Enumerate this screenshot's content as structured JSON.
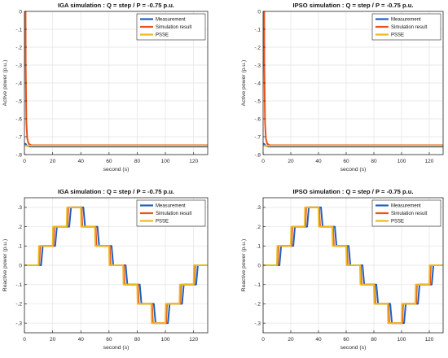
{
  "chart_data": [
    {
      "type": "line",
      "title": "IGA simulation : Q = step / P = -0.75 p.u.",
      "xlabel": "second (s)",
      "ylabel": "Active power (p.u.)",
      "xlim": [
        0,
        130
      ],
      "ylim": [
        -0.8,
        0
      ],
      "xticks": [
        0,
        20,
        40,
        60,
        80,
        100,
        120
      ],
      "yticks": [
        0,
        -0.1,
        -0.2,
        -0.3,
        -0.4,
        -0.5,
        -0.6,
        -0.7,
        -0.8
      ],
      "grid": true,
      "legend": "top-right",
      "series": [
        {
          "name": "Measurement",
          "color": "#1f5fbf",
          "x": [
            0,
            0.8,
            1.2,
            2,
            4,
            130
          ],
          "y": [
            -0.74,
            -0.74,
            -0.745,
            -0.752,
            -0.755,
            -0.755
          ]
        },
        {
          "name": "Simulation result",
          "color": "#e8541a",
          "x": [
            0.8,
            0.9,
            1.4,
            2,
            3,
            5,
            130
          ],
          "y": [
            0,
            -0.3,
            -0.62,
            -0.71,
            -0.74,
            -0.748,
            -0.748
          ]
        },
        {
          "name": "PSSE",
          "color": "#ecb820",
          "x": [
            0,
            1,
            2,
            5,
            130
          ],
          "y": [
            -0.75,
            -0.75,
            -0.752,
            -0.75,
            -0.75
          ]
        }
      ]
    },
    {
      "type": "line",
      "title": "IPSO simulation : Q = step / P = -0.75 p.u.",
      "xlabel": "second (s)",
      "ylabel": "Active power (p.u.)",
      "xlim": [
        0,
        130
      ],
      "ylim": [
        -0.8,
        0
      ],
      "xticks": [
        0,
        20,
        40,
        60,
        80,
        100,
        120
      ],
      "yticks": [
        0,
        -0.1,
        -0.2,
        -0.3,
        -0.4,
        -0.5,
        -0.6,
        -0.7,
        -0.8
      ],
      "grid": true,
      "legend": "top-right",
      "series": [
        {
          "name": "Measurement",
          "color": "#1f5fbf",
          "x": [
            0,
            0.8,
            1.2,
            2,
            4,
            130
          ],
          "y": [
            -0.74,
            -0.74,
            -0.745,
            -0.752,
            -0.755,
            -0.755
          ]
        },
        {
          "name": "Simulation result",
          "color": "#e8541a",
          "x": [
            0.8,
            0.9,
            1.4,
            2,
            3,
            5,
            130
          ],
          "y": [
            0,
            -0.3,
            -0.62,
            -0.71,
            -0.74,
            -0.748,
            -0.748
          ]
        },
        {
          "name": "PSSE",
          "color": "#ecb820",
          "x": [
            0,
            1,
            2,
            5,
            130
          ],
          "y": [
            -0.75,
            -0.75,
            -0.752,
            -0.75,
            -0.75
          ]
        }
      ]
    },
    {
      "type": "line",
      "title": "IGA simulation : Q = step / P = -0.75 p.u.",
      "xlabel": "second (s)",
      "ylabel": "Reactive power (p.u.)",
      "xlim": [
        0,
        130
      ],
      "ylim": [
        -0.35,
        0.35
      ],
      "xticks": [
        0,
        20,
        40,
        60,
        80,
        100,
        120
      ],
      "yticks": [
        0.3,
        0.2,
        0.1,
        0,
        -0.1,
        -0.2,
        -0.3
      ],
      "grid": true,
      "legend": "top-right",
      "step_times": [
        10,
        20,
        30,
        40,
        50,
        60,
        70,
        80,
        90,
        100,
        110,
        120
      ],
      "step_levels": [
        0,
        0.1,
        0.2,
        0.3,
        0.2,
        0.1,
        0,
        -0.1,
        -0.2,
        -0.3,
        -0.2,
        -0.1,
        0
      ],
      "series": [
        {
          "name": "Measurement",
          "color": "#1f5fbf",
          "delay": 1.8,
          "smooth": 1.2
        },
        {
          "name": "Simulation result",
          "color": "#e8541a",
          "delay": 0.5,
          "smooth": 0.6
        },
        {
          "name": "PSSE",
          "color": "#ecb820",
          "delay": 0,
          "smooth": 0.3
        }
      ]
    },
    {
      "type": "line",
      "title": "IPSO simulation : Q = step / P = -0.75 p.u.",
      "xlabel": "second (s)",
      "ylabel": "Reactive power (p.u.)",
      "xlim": [
        0,
        130
      ],
      "ylim": [
        -0.35,
        0.35
      ],
      "xticks": [
        0,
        20,
        40,
        60,
        80,
        100,
        120
      ],
      "yticks": [
        0.3,
        0.2,
        0.1,
        0,
        -0.1,
        -0.2,
        -0.3
      ],
      "grid": true,
      "legend": "top-right",
      "step_times": [
        10,
        20,
        30,
        40,
        50,
        60,
        70,
        80,
        90,
        100,
        110,
        120
      ],
      "step_levels": [
        0,
        0.1,
        0.2,
        0.3,
        0.2,
        0.1,
        0,
        -0.1,
        -0.2,
        -0.3,
        -0.2,
        -0.1,
        0
      ],
      "series": [
        {
          "name": "Measurement",
          "color": "#1f5fbf",
          "delay": 1.8,
          "smooth": 1.2
        },
        {
          "name": "Simulation result",
          "color": "#e8541a",
          "delay": 0.5,
          "smooth": 0.6
        },
        {
          "name": "PSSE",
          "color": "#ecb820",
          "delay": 0,
          "smooth": 0.3
        }
      ]
    }
  ]
}
